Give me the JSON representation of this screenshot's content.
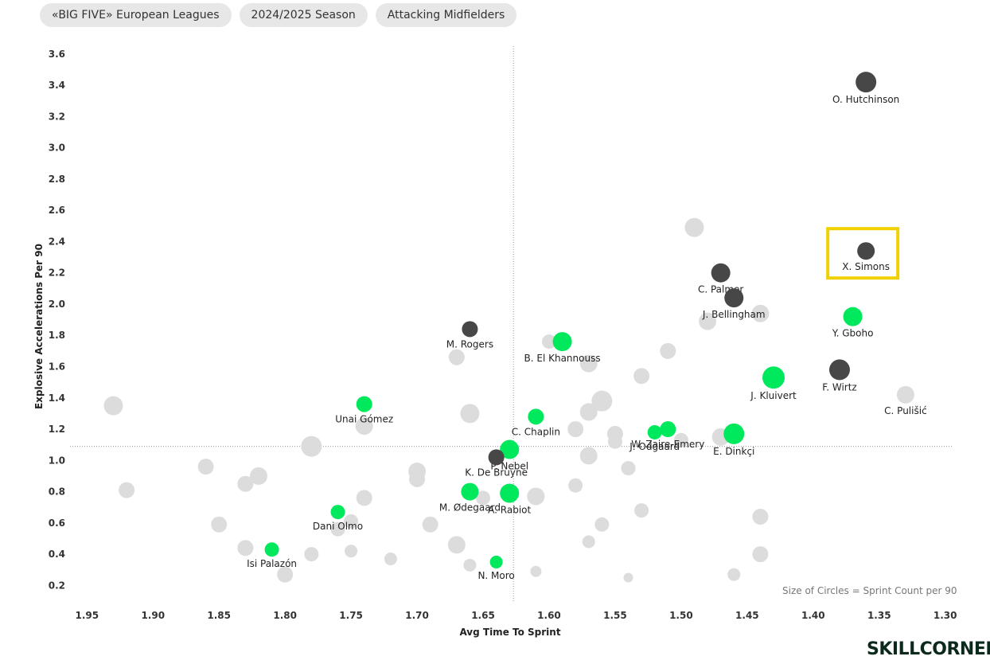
{
  "filters": [
    "«BIG FIVE» European Leagues",
    "2024/2025 Season",
    "Attacking Midfielders"
  ],
  "size_note": "Size of Circles = Sprint Count per 90",
  "logo": "SKILLCORNER",
  "colors": {
    "highlight": "#00e85c",
    "dark": "#474747",
    "background_dots": "#dcdcdc",
    "box": "#f0d000"
  },
  "chart_data": {
    "type": "scatter",
    "xlabel": "Avg Time To Sprint",
    "ylabel": "Explosive Accelerations Per 90",
    "x_reversed": true,
    "xlim": [
      1.955,
      1.295
    ],
    "ylim": [
      0.1,
      3.65
    ],
    "x_ticks": [
      "1.95",
      "1.90",
      "1.85",
      "1.80",
      "1.75",
      "1.70",
      "1.65",
      "1.60",
      "1.55",
      "1.50",
      "1.45",
      "1.40",
      "1.35",
      "1.30"
    ],
    "y_ticks": [
      "3.6",
      "3.4",
      "3.2",
      "3.0",
      "2.8",
      "2.6",
      "2.4",
      "2.2",
      "2.0",
      "1.8",
      "1.6",
      "1.4",
      "1.2",
      "1.0",
      "0.8",
      "0.6",
      "0.4",
      "0.2"
    ],
    "reference_lines": {
      "x": 1.627,
      "y": 1.09
    },
    "highlight_box_player": "X. Simons",
    "labeled_points": [
      {
        "name": "O. Hutchinson",
        "x": 1.36,
        "y": 3.42,
        "group": "dark",
        "r": 13
      },
      {
        "name": "X. Simons",
        "x": 1.36,
        "y": 2.34,
        "group": "dark",
        "r": 11
      },
      {
        "name": "C. Palmer",
        "x": 1.47,
        "y": 2.2,
        "group": "dark",
        "r": 12
      },
      {
        "name": "J. Bellingham",
        "x": 1.46,
        "y": 2.04,
        "group": "dark",
        "r": 12
      },
      {
        "name": "Y. Gboho",
        "x": 1.37,
        "y": 1.92,
        "group": "green",
        "r": 12
      },
      {
        "name": "M. Rogers",
        "x": 1.66,
        "y": 1.84,
        "group": "dark",
        "r": 10
      },
      {
        "name": "B. El Khannouss",
        "x": 1.59,
        "y": 1.76,
        "group": "green",
        "r": 12
      },
      {
        "name": "J. Kluivert",
        "x": 1.43,
        "y": 1.53,
        "group": "green",
        "r": 14
      },
      {
        "name": "F. Wirtz",
        "x": 1.38,
        "y": 1.58,
        "group": "dark",
        "r": 13
      },
      {
        "name": "C. Pulišić",
        "x": 1.33,
        "y": 1.42,
        "group": "gray",
        "r": 11
      },
      {
        "name": "Unai Gómez",
        "x": 1.74,
        "y": 1.36,
        "group": "green",
        "r": 10
      },
      {
        "name": "C. Chaplin",
        "x": 1.61,
        "y": 1.28,
        "group": "green",
        "r": 10
      },
      {
        "name": "W. Zaire-Emery",
        "x": 1.51,
        "y": 1.2,
        "group": "green",
        "r": 10
      },
      {
        "name": "J. Odgaard",
        "x": 1.52,
        "y": 1.18,
        "group": "green",
        "r": 9
      },
      {
        "name": "E. Dinkçi",
        "x": 1.46,
        "y": 1.17,
        "group": "green",
        "r": 13
      },
      {
        "name": "P. Nebel",
        "x": 1.63,
        "y": 1.07,
        "group": "green",
        "r": 12
      },
      {
        "name": "K. De Bruyne",
        "x": 1.64,
        "y": 1.02,
        "group": "dark",
        "r": 10
      },
      {
        "name": "M. Ødegaard",
        "x": 1.66,
        "y": 0.8,
        "group": "green",
        "r": 11
      },
      {
        "name": "A. Rabiot",
        "x": 1.63,
        "y": 0.79,
        "group": "green",
        "r": 12
      },
      {
        "name": "Dani Olmo",
        "x": 1.76,
        "y": 0.67,
        "group": "green",
        "r": 9
      },
      {
        "name": "Isi Palazón",
        "x": 1.81,
        "y": 0.43,
        "group": "green",
        "r": 9
      },
      {
        "name": "N. Moro",
        "x": 1.64,
        "y": 0.35,
        "group": "green",
        "r": 8
      }
    ],
    "background_points": [
      {
        "x": 1.93,
        "y": 1.35,
        "r": 12
      },
      {
        "x": 1.92,
        "y": 0.81,
        "r": 10
      },
      {
        "x": 1.86,
        "y": 0.96,
        "r": 10
      },
      {
        "x": 1.85,
        "y": 0.59,
        "r": 10
      },
      {
        "x": 1.83,
        "y": 0.85,
        "r": 10
      },
      {
        "x": 1.82,
        "y": 0.9,
        "r": 11
      },
      {
        "x": 1.83,
        "y": 0.44,
        "r": 10
      },
      {
        "x": 1.8,
        "y": 0.27,
        "r": 10
      },
      {
        "x": 1.78,
        "y": 1.09,
        "r": 13
      },
      {
        "x": 1.78,
        "y": 0.4,
        "r": 9
      },
      {
        "x": 1.76,
        "y": 0.56,
        "r": 9
      },
      {
        "x": 1.75,
        "y": 0.61,
        "r": 9
      },
      {
        "x": 1.75,
        "y": 0.42,
        "r": 8
      },
      {
        "x": 1.74,
        "y": 1.22,
        "r": 11
      },
      {
        "x": 1.74,
        "y": 0.76,
        "r": 10
      },
      {
        "x": 1.72,
        "y": 0.37,
        "r": 8
      },
      {
        "x": 1.7,
        "y": 0.93,
        "r": 11
      },
      {
        "x": 1.7,
        "y": 0.88,
        "r": 10
      },
      {
        "x": 1.69,
        "y": 0.59,
        "r": 10
      },
      {
        "x": 1.67,
        "y": 1.66,
        "r": 10
      },
      {
        "x": 1.67,
        "y": 0.46,
        "r": 11
      },
      {
        "x": 1.66,
        "y": 1.3,
        "r": 12
      },
      {
        "x": 1.66,
        "y": 0.33,
        "r": 8
      },
      {
        "x": 1.65,
        "y": 0.76,
        "r": 9
      },
      {
        "x": 1.61,
        "y": 0.77,
        "r": 11
      },
      {
        "x": 1.61,
        "y": 0.29,
        "r": 7
      },
      {
        "x": 1.6,
        "y": 1.76,
        "r": 9
      },
      {
        "x": 1.58,
        "y": 1.2,
        "r": 10
      },
      {
        "x": 1.58,
        "y": 0.84,
        "r": 9
      },
      {
        "x": 1.57,
        "y": 1.62,
        "r": 11
      },
      {
        "x": 1.57,
        "y": 1.31,
        "r": 11
      },
      {
        "x": 1.57,
        "y": 1.03,
        "r": 11
      },
      {
        "x": 1.57,
        "y": 0.48,
        "r": 8
      },
      {
        "x": 1.56,
        "y": 1.38,
        "r": 13
      },
      {
        "x": 1.56,
        "y": 0.59,
        "r": 9
      },
      {
        "x": 1.55,
        "y": 1.17,
        "r": 10
      },
      {
        "x": 1.55,
        "y": 1.12,
        "r": 9
      },
      {
        "x": 1.54,
        "y": 0.95,
        "r": 9
      },
      {
        "x": 1.54,
        "y": 0.25,
        "r": 6
      },
      {
        "x": 1.53,
        "y": 1.54,
        "r": 10
      },
      {
        "x": 1.53,
        "y": 0.68,
        "r": 9
      },
      {
        "x": 1.51,
        "y": 1.7,
        "r": 10
      },
      {
        "x": 1.5,
        "y": 1.13,
        "r": 9
      },
      {
        "x": 1.49,
        "y": 2.49,
        "r": 12
      },
      {
        "x": 1.48,
        "y": 1.89,
        "r": 11
      },
      {
        "x": 1.47,
        "y": 1.15,
        "r": 11
      },
      {
        "x": 1.46,
        "y": 0.27,
        "r": 8
      },
      {
        "x": 1.44,
        "y": 1.94,
        "r": 11
      },
      {
        "x": 1.44,
        "y": 0.64,
        "r": 10
      },
      {
        "x": 1.44,
        "y": 0.4,
        "r": 10
      }
    ]
  }
}
